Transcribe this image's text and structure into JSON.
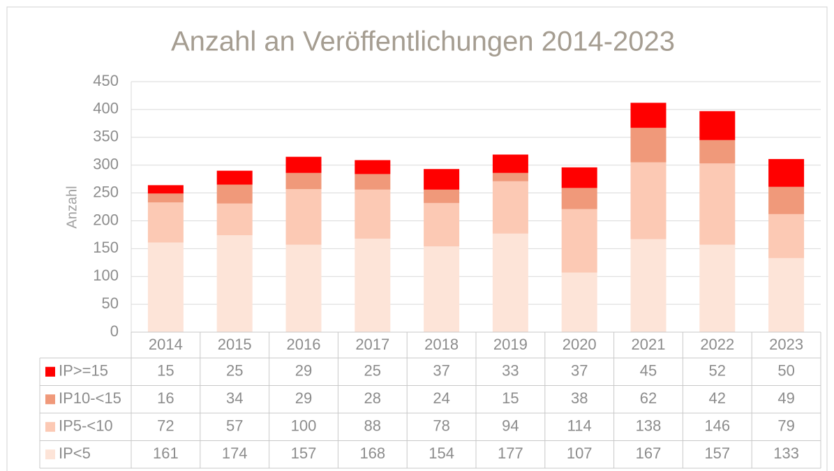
{
  "chart_data": {
    "type": "stacked_bar",
    "title": "Anzahl an Veröffentlichungen 2014-2023",
    "y_label": "Anzahl",
    "categories": [
      "2014",
      "2015",
      "2016",
      "2017",
      "2018",
      "2019",
      "2020",
      "2021",
      "2022",
      "2023"
    ],
    "series": [
      {
        "name": "IP<5",
        "color": "#fde4d8",
        "values": [
          161,
          174,
          157,
          168,
          154,
          177,
          107,
          167,
          157,
          133
        ]
      },
      {
        "name": "IP5-<10",
        "color": "#fcc9b4",
        "values": [
          72,
          57,
          100,
          88,
          78,
          94,
          114,
          138,
          146,
          79
        ]
      },
      {
        "name": "IP10-<15",
        "color": "#f0997a",
        "values": [
          16,
          34,
          29,
          28,
          24,
          15,
          38,
          62,
          42,
          49
        ]
      },
      {
        "name": "IP>=15",
        "color": "#ff0000",
        "values": [
          15,
          25,
          29,
          25,
          37,
          33,
          37,
          45,
          52,
          50
        ]
      }
    ],
    "ylim": [
      0,
      450
    ],
    "yticks": [
      0,
      50,
      100,
      150,
      200,
      250,
      300,
      350,
      400,
      450
    ],
    "grid": true
  }
}
